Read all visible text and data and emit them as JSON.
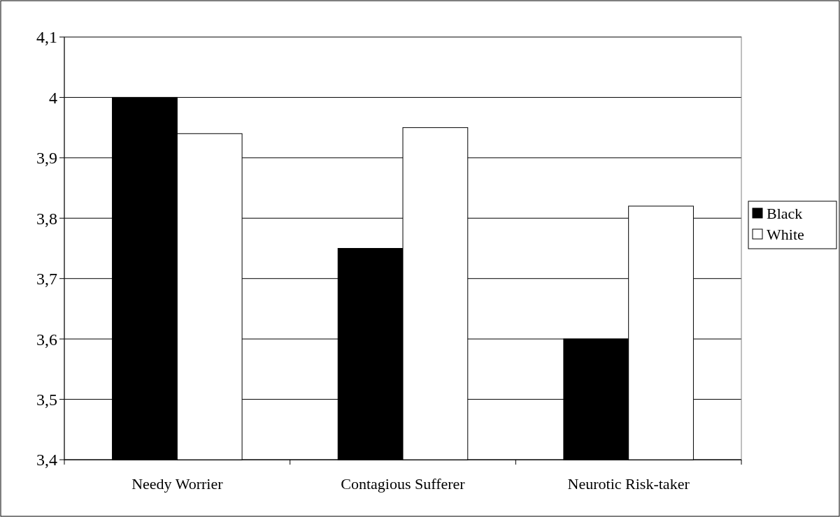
{
  "chart_data": {
    "type": "bar",
    "categories": [
      "Needy Worrier",
      "Contagious Sufferer",
      "Neurotic Risk-taker"
    ],
    "series": [
      {
        "name": "Black",
        "color": "#000000",
        "values": [
          4.0,
          3.75,
          3.6
        ]
      },
      {
        "name": "White",
        "color": "#ffffff",
        "values": [
          3.94,
          3.95,
          3.82
        ]
      }
    ],
    "ylim": [
      3.4,
      4.1
    ],
    "yticks": [
      {
        "value": 3.4,
        "label": "3,4"
      },
      {
        "value": 3.5,
        "label": "3,5"
      },
      {
        "value": 3.6,
        "label": "3,6"
      },
      {
        "value": 3.7,
        "label": "3,7"
      },
      {
        "value": 3.8,
        "label": "3,8"
      },
      {
        "value": 3.9,
        "label": "3,9"
      },
      4,
      {
        "value": 4.1,
        "label": "4,1"
      }
    ],
    "grid": "y",
    "legend": "right"
  }
}
